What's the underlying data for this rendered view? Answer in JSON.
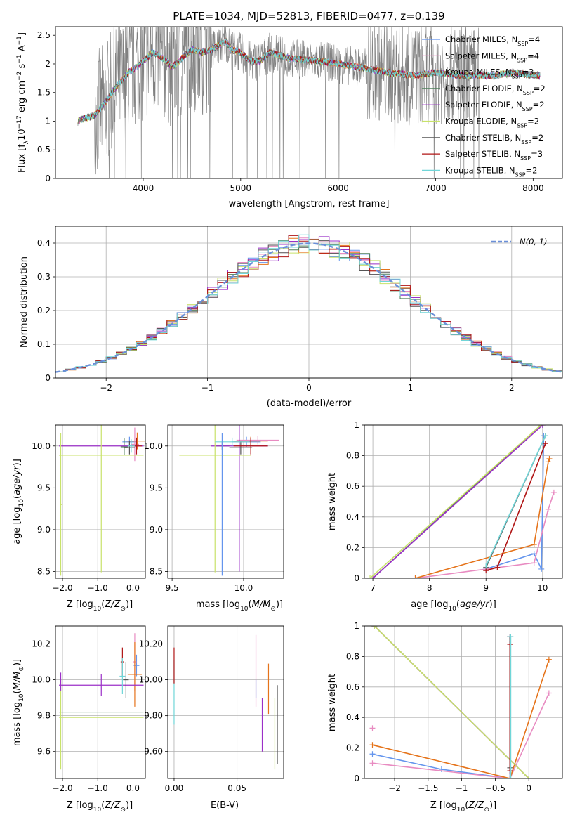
{
  "chart_data": [
    {
      "type": "line",
      "title": "PLATE=1034, MJD=52813, FIBERID=0477, z=0.139",
      "xlabel": "wavelength [Angstrom, rest frame]",
      "ylabel": "Flux [f_λ 10^-17 erg cm^-2 s^-1 A^-1]",
      "xlim": [
        3100,
        8300
      ],
      "ylim": [
        0,
        2.65
      ],
      "xticks": [
        4000,
        5000,
        6000,
        7000,
        8000
      ],
      "yticks": [
        0.0,
        0.5,
        1.0,
        1.5,
        2.0,
        2.5
      ],
      "grid": false,
      "legend_position": "right",
      "data_color": "#808080",
      "spectrum_shape": {
        "x": [
          3330,
          3400,
          3500,
          3600,
          3700,
          3800,
          3850,
          3900,
          4000,
          4100,
          4200,
          4300,
          4400,
          4500,
          4600,
          4700,
          4800,
          4850,
          4900,
          5000,
          5100,
          5200,
          5300,
          5500,
          5800,
          6000,
          6200,
          6500,
          6800,
          7000,
          7200,
          7400,
          7600,
          7800,
          8000,
          8070
        ],
        "y": [
          1.0,
          1.05,
          1.1,
          1.3,
          1.55,
          1.75,
          1.85,
          1.9,
          2.05,
          2.2,
          2.1,
          1.95,
          2.1,
          2.25,
          2.2,
          2.25,
          2.35,
          2.4,
          2.25,
          2.2,
          2.05,
          2.05,
          2.2,
          2.1,
          2.05,
          2.0,
          1.95,
          1.85,
          1.8,
          1.85,
          1.8,
          1.8,
          1.8,
          1.85,
          1.8,
          1.8
        ]
      },
      "series": [
        {
          "name": "Chabrier MILES, N_SSP=4",
          "color": "#6495ed"
        },
        {
          "name": "Salpeter MILES, N_SSP=4",
          "color": "#e88bc1"
        },
        {
          "name": "Kroupa MILES, N_SSP=3",
          "color": "#e5731a"
        },
        {
          "name": "Chabrier ELODIE, N_SSP=2",
          "color": "#4e7f5a"
        },
        {
          "name": "Salpeter ELODIE, N_SSP=2",
          "color": "#9b30c8"
        },
        {
          "name": "Kroupa ELODIE, N_SSP=2",
          "color": "#c8e26a"
        },
        {
          "name": "Chabrier STELIB, N_SSP=2",
          "color": "#555555"
        },
        {
          "name": "Salpeter STELIB, N_SSP=3",
          "color": "#b01515"
        },
        {
          "name": "Kroupa STELIB, N_SSP=2",
          "color": "#70d6d8"
        }
      ]
    },
    {
      "type": "bar",
      "xlabel": "(data-model)/error",
      "ylabel": "Normed distribution",
      "xlim": [
        -2.5,
        2.5
      ],
      "ylim": [
        0,
        0.45
      ],
      "xticks": [
        -2,
        -1,
        0,
        1,
        2
      ],
      "yticks": [
        0.0,
        0.1,
        0.2,
        0.3,
        0.4
      ],
      "grid": true,
      "legend_position": "top-right",
      "bin_width": 0.1,
      "legend": "N(0, 1)",
      "normal_color": "#6a8fd8"
    },
    {
      "type": "scatter",
      "xlabel": "Z [log10(Z/Z_sun)]",
      "ylabel": "age [log10(age/yr)]",
      "xlim": [
        -2.2,
        0.35
      ],
      "ylim": [
        8.42,
        10.25
      ],
      "xticks": [
        -2,
        -1,
        0
      ],
      "yticks": [
        8.5,
        9.0,
        9.5,
        10.0
      ],
      "grid": true,
      "points": [
        {
          "series": 0,
          "x": -0.1,
          "y": 10.05,
          "xerr": 0.2,
          "yerr": 0.06
        },
        {
          "series": 1,
          "x": 0.05,
          "y": 10.02,
          "xerr": 0.12,
          "yerr": 0.2
        },
        {
          "series": 2,
          "x": 0.12,
          "y": 10.06,
          "xerr": 0.3,
          "yerr": 0.1
        },
        {
          "series": 3,
          "x": -0.25,
          "y": 9.99,
          "xerr": 0.1,
          "yerr": 0.1
        },
        {
          "series": 4,
          "x": -0.9,
          "y": 10.0,
          "xerr": 1.2,
          "yerr": 0.0
        },
        {
          "series": 5,
          "x": -0.9,
          "y": 9.89,
          "xerr": 1.2,
          "yerr": 1.4
        },
        {
          "series": 6,
          "x": -0.1,
          "y": 9.98,
          "xerr": 0.15,
          "yerr": 0.08
        },
        {
          "series": 7,
          "x": 0.1,
          "y": 10.0,
          "xerr": 0.15,
          "yerr": 0.1
        },
        {
          "series": 8,
          "x": -0.05,
          "y": 10.0,
          "xerr": 0.1,
          "yerr": 0.08
        },
        {
          "series": 5,
          "x": -2.05,
          "y": 9.3,
          "xerr": 0.03,
          "yerr": 0.85
        }
      ]
    },
    {
      "type": "scatter",
      "xlabel": "mass [log10(M/M_sun)]",
      "ylabel": "",
      "xlim": [
        9.47,
        10.28
      ],
      "ylim": [
        8.42,
        10.25
      ],
      "xticks": [
        9.5,
        10.0
      ],
      "yticks": [
        8.5,
        9.0,
        9.5,
        10.0
      ],
      "grid": true,
      "points": [
        {
          "series": 0,
          "x": 10.02,
          "y": 10.05,
          "xerr": 0.1,
          "yerr": 0.06
        },
        {
          "series": 1,
          "x": 10.1,
          "y": 10.07,
          "xerr": 0.15,
          "yerr": 0.05
        },
        {
          "series": 2,
          "x": 10.05,
          "y": 10.06,
          "xerr": 0.12,
          "yerr": 0.05
        },
        {
          "series": 3,
          "x": 9.85,
          "y": 10.0,
          "xerr": 0.05,
          "yerr": 0.05
        },
        {
          "series": 4,
          "x": 9.97,
          "y": 10.0,
          "xerr": 0.2,
          "yerr": 1.5
        },
        {
          "series": 5,
          "x": 9.8,
          "y": 9.89,
          "xerr": 0.25,
          "yerr": 1.4
        },
        {
          "series": 6,
          "x": 9.98,
          "y": 9.98,
          "xerr": 0.08,
          "yerr": 0.08
        },
        {
          "series": 7,
          "x": 10.05,
          "y": 10.0,
          "xerr": 0.12,
          "yerr": 0.1
        },
        {
          "series": 8,
          "x": 9.92,
          "y": 10.05,
          "xerr": 0.12,
          "yerr": 0.05
        },
        {
          "series": 0,
          "x": 9.85,
          "y": 9.3,
          "xerr": 0.0,
          "yerr": 0.85
        }
      ]
    },
    {
      "type": "line",
      "xlabel": "age [log10(age/yr)]",
      "ylabel": "mass weight",
      "xlim": [
        6.85,
        10.35
      ],
      "ylim": [
        0,
        1.0
      ],
      "xticks": [
        7,
        8,
        9,
        10
      ],
      "yticks": [
        0.0,
        0.2,
        0.4,
        0.6,
        0.8,
        1.0
      ],
      "grid": true,
      "series": [
        {
          "color": "#6495ed",
          "x": [
            9.0,
            9.85,
            9.98,
            10.02
          ],
          "y": [
            0.06,
            0.16,
            0.06,
            0.93
          ]
        },
        {
          "color": "#e88bc1",
          "x": [
            7.75,
            9.85,
            10.1,
            10.2
          ],
          "y": [
            0.0,
            0.1,
            0.45,
            0.56
          ]
        },
        {
          "color": "#e5731a",
          "x": [
            7.75,
            9.85,
            10.1,
            10.12
          ],
          "y": [
            0.0,
            0.22,
            0.76,
            0.78
          ]
        },
        {
          "color": "#4e7f5a",
          "x": [
            7.0,
            9.97
          ],
          "y": [
            0.0,
            1.0
          ]
        },
        {
          "color": "#9b30c8",
          "x": [
            7.0,
            10.0
          ],
          "y": [
            0.0,
            1.0
          ]
        },
        {
          "color": "#c8e26a",
          "x": [
            6.95,
            9.97
          ],
          "y": [
            0.0,
            1.0
          ]
        },
        {
          "color": "#555555",
          "x": [
            9.0,
            10.05
          ],
          "y": [
            0.07,
            0.93
          ]
        },
        {
          "color": "#b01515",
          "x": [
            9.0,
            9.2,
            10.05
          ],
          "y": [
            0.05,
            0.07,
            0.88
          ]
        },
        {
          "color": "#70d6d8",
          "x": [
            9.0,
            10.05
          ],
          "y": [
            0.08,
            0.93
          ]
        }
      ]
    },
    {
      "type": "scatter",
      "xlabel": "Z [log10(Z/Z_sun)]",
      "ylabel": "mass [log10(M/M_sun)]",
      "xlim": [
        -2.2,
        0.35
      ],
      "ylim": [
        9.45,
        10.3
      ],
      "xticks": [
        -2,
        -1,
        0
      ],
      "yticks": [
        9.6,
        9.8,
        10.0,
        10.2
      ],
      "grid": true,
      "points": [
        {
          "series": 0,
          "x": 0.1,
          "y": 10.08,
          "xerr": 0.08,
          "yerr": 0.06
        },
        {
          "series": 1,
          "x": 0.05,
          "y": 10.1,
          "xerr": 0.05,
          "yerr": 0.16
        },
        {
          "series": 2,
          "x": 0.05,
          "y": 10.03,
          "xerr": 0.2,
          "yerr": 0.18
        },
        {
          "series": 3,
          "x": -0.9,
          "y": 9.82,
          "xerr": 1.2,
          "yerr": 0.0
        },
        {
          "series": 4,
          "x": -0.9,
          "y": 9.97,
          "xerr": 1.2,
          "yerr": 0.06
        },
        {
          "series": 5,
          "x": -0.9,
          "y": 9.79,
          "xerr": 1.2,
          "yerr": 0.0
        },
        {
          "series": 6,
          "x": -0.2,
          "y": 10.0,
          "xerr": 0.08,
          "yerr": 0.1
        },
        {
          "series": 7,
          "x": -0.3,
          "y": 10.1,
          "xerr": 0.05,
          "yerr": 0.08
        },
        {
          "series": 8,
          "x": -0.3,
          "y": 10.02,
          "xerr": 0.08,
          "yerr": 0.1
        },
        {
          "series": 5,
          "x": -2.05,
          "y": 9.75,
          "xerr": 0.0,
          "yerr": 0.25
        },
        {
          "series": 4,
          "x": -2.05,
          "y": 9.99,
          "xerr": 0.0,
          "yerr": 0.05
        }
      ]
    },
    {
      "type": "scatter",
      "xlabel": "E(B-V)",
      "ylabel": "",
      "xlim": [
        -0.005,
        0.087
      ],
      "ylim": [
        9.45,
        10.3
      ],
      "xticks": [
        0.0,
        0.05
      ],
      "yticks": [
        9.6,
        9.8,
        10.0,
        10.2
      ],
      "grid": true,
      "points": [
        {
          "series": 8,
          "x": 0.0,
          "y": 9.93,
          "xerr": 0.0,
          "yerr": 0.18
        },
        {
          "series": 7,
          "x": 0.0,
          "y": 10.08,
          "xerr": 0.0,
          "yerr": 0.1
        },
        {
          "series": 1,
          "x": 0.065,
          "y": 10.05,
          "xerr": 0.0,
          "yerr": 0.2
        },
        {
          "series": 4,
          "x": 0.07,
          "y": 9.75,
          "xerr": 0.0,
          "yerr": 0.15
        },
        {
          "series": 2,
          "x": 0.075,
          "y": 9.95,
          "xerr": 0.0,
          "yerr": 0.14
        },
        {
          "series": 5,
          "x": 0.08,
          "y": 9.7,
          "xerr": 0.0,
          "yerr": 0.2
        },
        {
          "series": 6,
          "x": 0.082,
          "y": 9.75,
          "xerr": 0.0,
          "yerr": 0.22
        },
        {
          "series": 0,
          "x": 0.065,
          "y": 9.95,
          "xerr": 0.0,
          "yerr": 0.05
        }
      ]
    },
    {
      "type": "line",
      "xlabel": "Z [log10(Z/Z_sun)]",
      "ylabel": "mass weight",
      "xlim": [
        -2.45,
        0.5
      ],
      "ylim": [
        0,
        1.0
      ],
      "xticks": [
        -2.0,
        -1.5,
        -1.0,
        -0.5,
        0.0
      ],
      "yticks": [
        0.0,
        0.2,
        0.4,
        0.6,
        0.8,
        1.0
      ],
      "grid": true,
      "series": [
        {
          "color": "#6495ed",
          "x": [
            -2.33,
            -1.3,
            -0.28,
            -0.28
          ],
          "y": [
            0.16,
            0.06,
            0.0,
            0.93
          ]
        },
        {
          "color": "#e88bc1",
          "x": [
            -2.33,
            -0.28,
            0.3
          ],
          "y": [
            0.1,
            0.0,
            0.56
          ]
        },
        {
          "color": "#e5731a",
          "x": [
            -2.33,
            -0.28,
            0.3
          ],
          "y": [
            0.22,
            0.0,
            0.78
          ]
        },
        {
          "color": "#4e7f5a",
          "x": [
            -2.3,
            0.0
          ],
          "y": [
            1.0,
            0.0
          ]
        },
        {
          "color": "#9b30c8",
          "x": [
            -2.3,
            0.0
          ],
          "y": [
            1.0,
            0.0
          ]
        },
        {
          "color": "#c8e26a",
          "x": [
            -2.3,
            0.0
          ],
          "y": [
            1.0,
            0.0
          ]
        },
        {
          "color": "#555555",
          "x": [
            -0.28,
            -0.28
          ],
          "y": [
            0.07,
            0.93
          ]
        },
        {
          "color": "#b01515",
          "x": [
            -0.28,
            -0.28
          ],
          "y": [
            0.05,
            0.88
          ]
        },
        {
          "color": "#70d6d8",
          "x": [
            -0.27,
            -0.27
          ],
          "y": [
            0.0,
            0.93
          ]
        }
      ],
      "markers": [
        {
          "series": 1,
          "x": -2.33,
          "y": 0.33
        }
      ]
    }
  ]
}
